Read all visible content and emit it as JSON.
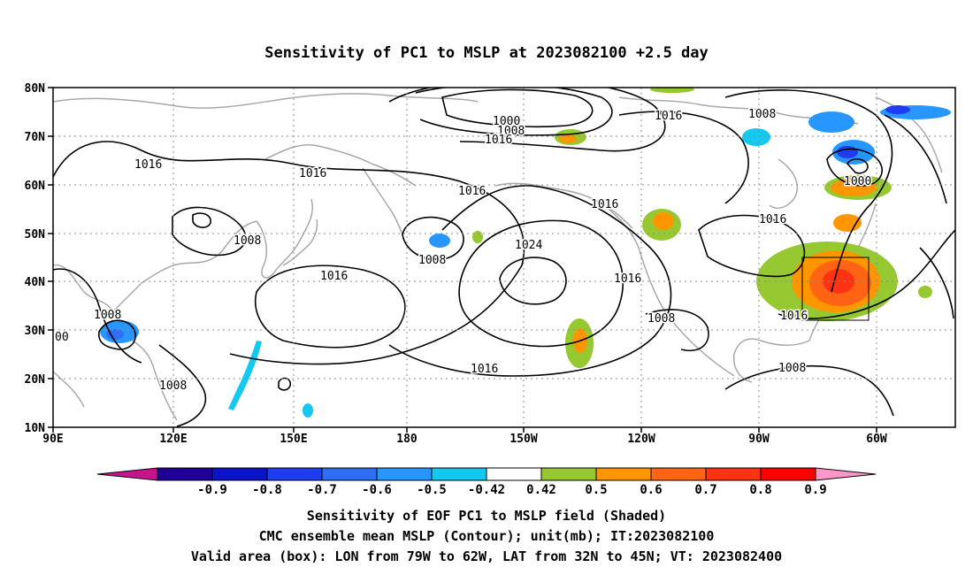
{
  "title": "Sensitivity of PC1 to MSLP at 2023082100 +2.5 day",
  "map": {
    "lat_ticks": [
      "80N",
      "70N",
      "60N",
      "50N",
      "40N",
      "30N",
      "20N",
      "10N"
    ],
    "lon_ticks": [
      "90E",
      "120E",
      "150E",
      "180",
      "150W",
      "120W",
      "90W",
      "60W"
    ],
    "contour_labels": [
      {
        "text": "1000"
      },
      {
        "text": "1008"
      },
      {
        "text": "1016"
      },
      {
        "text": "1016"
      },
      {
        "text": "1008"
      },
      {
        "text": "1016"
      },
      {
        "text": "1016"
      },
      {
        "text": "1016"
      },
      {
        "text": "1016"
      },
      {
        "text": "1008"
      },
      {
        "text": "1016"
      },
      {
        "text": "1008"
      },
      {
        "text": "1016"
      },
      {
        "text": "1024"
      },
      {
        "text": "1016"
      },
      {
        "text": "1016"
      },
      {
        "text": "1008"
      },
      {
        "text": "1016"
      },
      {
        "text": "1008"
      },
      {
        "text": "1000"
      },
      {
        "text": "1008"
      },
      {
        "text": "00"
      },
      {
        "text": "1008"
      },
      {
        "text": "1016"
      },
      {
        "text": "1008"
      }
    ],
    "box_label": "Valid area box: 79W-62W, 32N-45N"
  },
  "colorbar": {
    "labels": [
      "-0.9",
      "-0.8",
      "-0.7",
      "-0.6",
      "-0.5",
      "-0.42",
      "0.42",
      "0.5",
      "0.6",
      "0.7",
      "0.8",
      "0.9"
    ],
    "colors": [
      "#1e0096",
      "#0a14c8",
      "#1e3cf0",
      "#2d6ef5",
      "#2896ff",
      "#14c8f0",
      "#ffffff",
      "#96c832",
      "#ff9600",
      "#ff6414",
      "#ff3214",
      "#ff0000"
    ],
    "left_arrow_color": "#c8148c",
    "right_arrow_color": "#ff96c8"
  },
  "captions": [
    "Sensitivity of EOF PC1 to MSLP field (Shaded)",
    "CMC ensemble mean MSLP (Contour); unit(mb); IT:2023082100",
    "Valid area (box): LON from 79W to 62W, LAT from 32N to 45N; VT: 2023082400"
  ]
}
